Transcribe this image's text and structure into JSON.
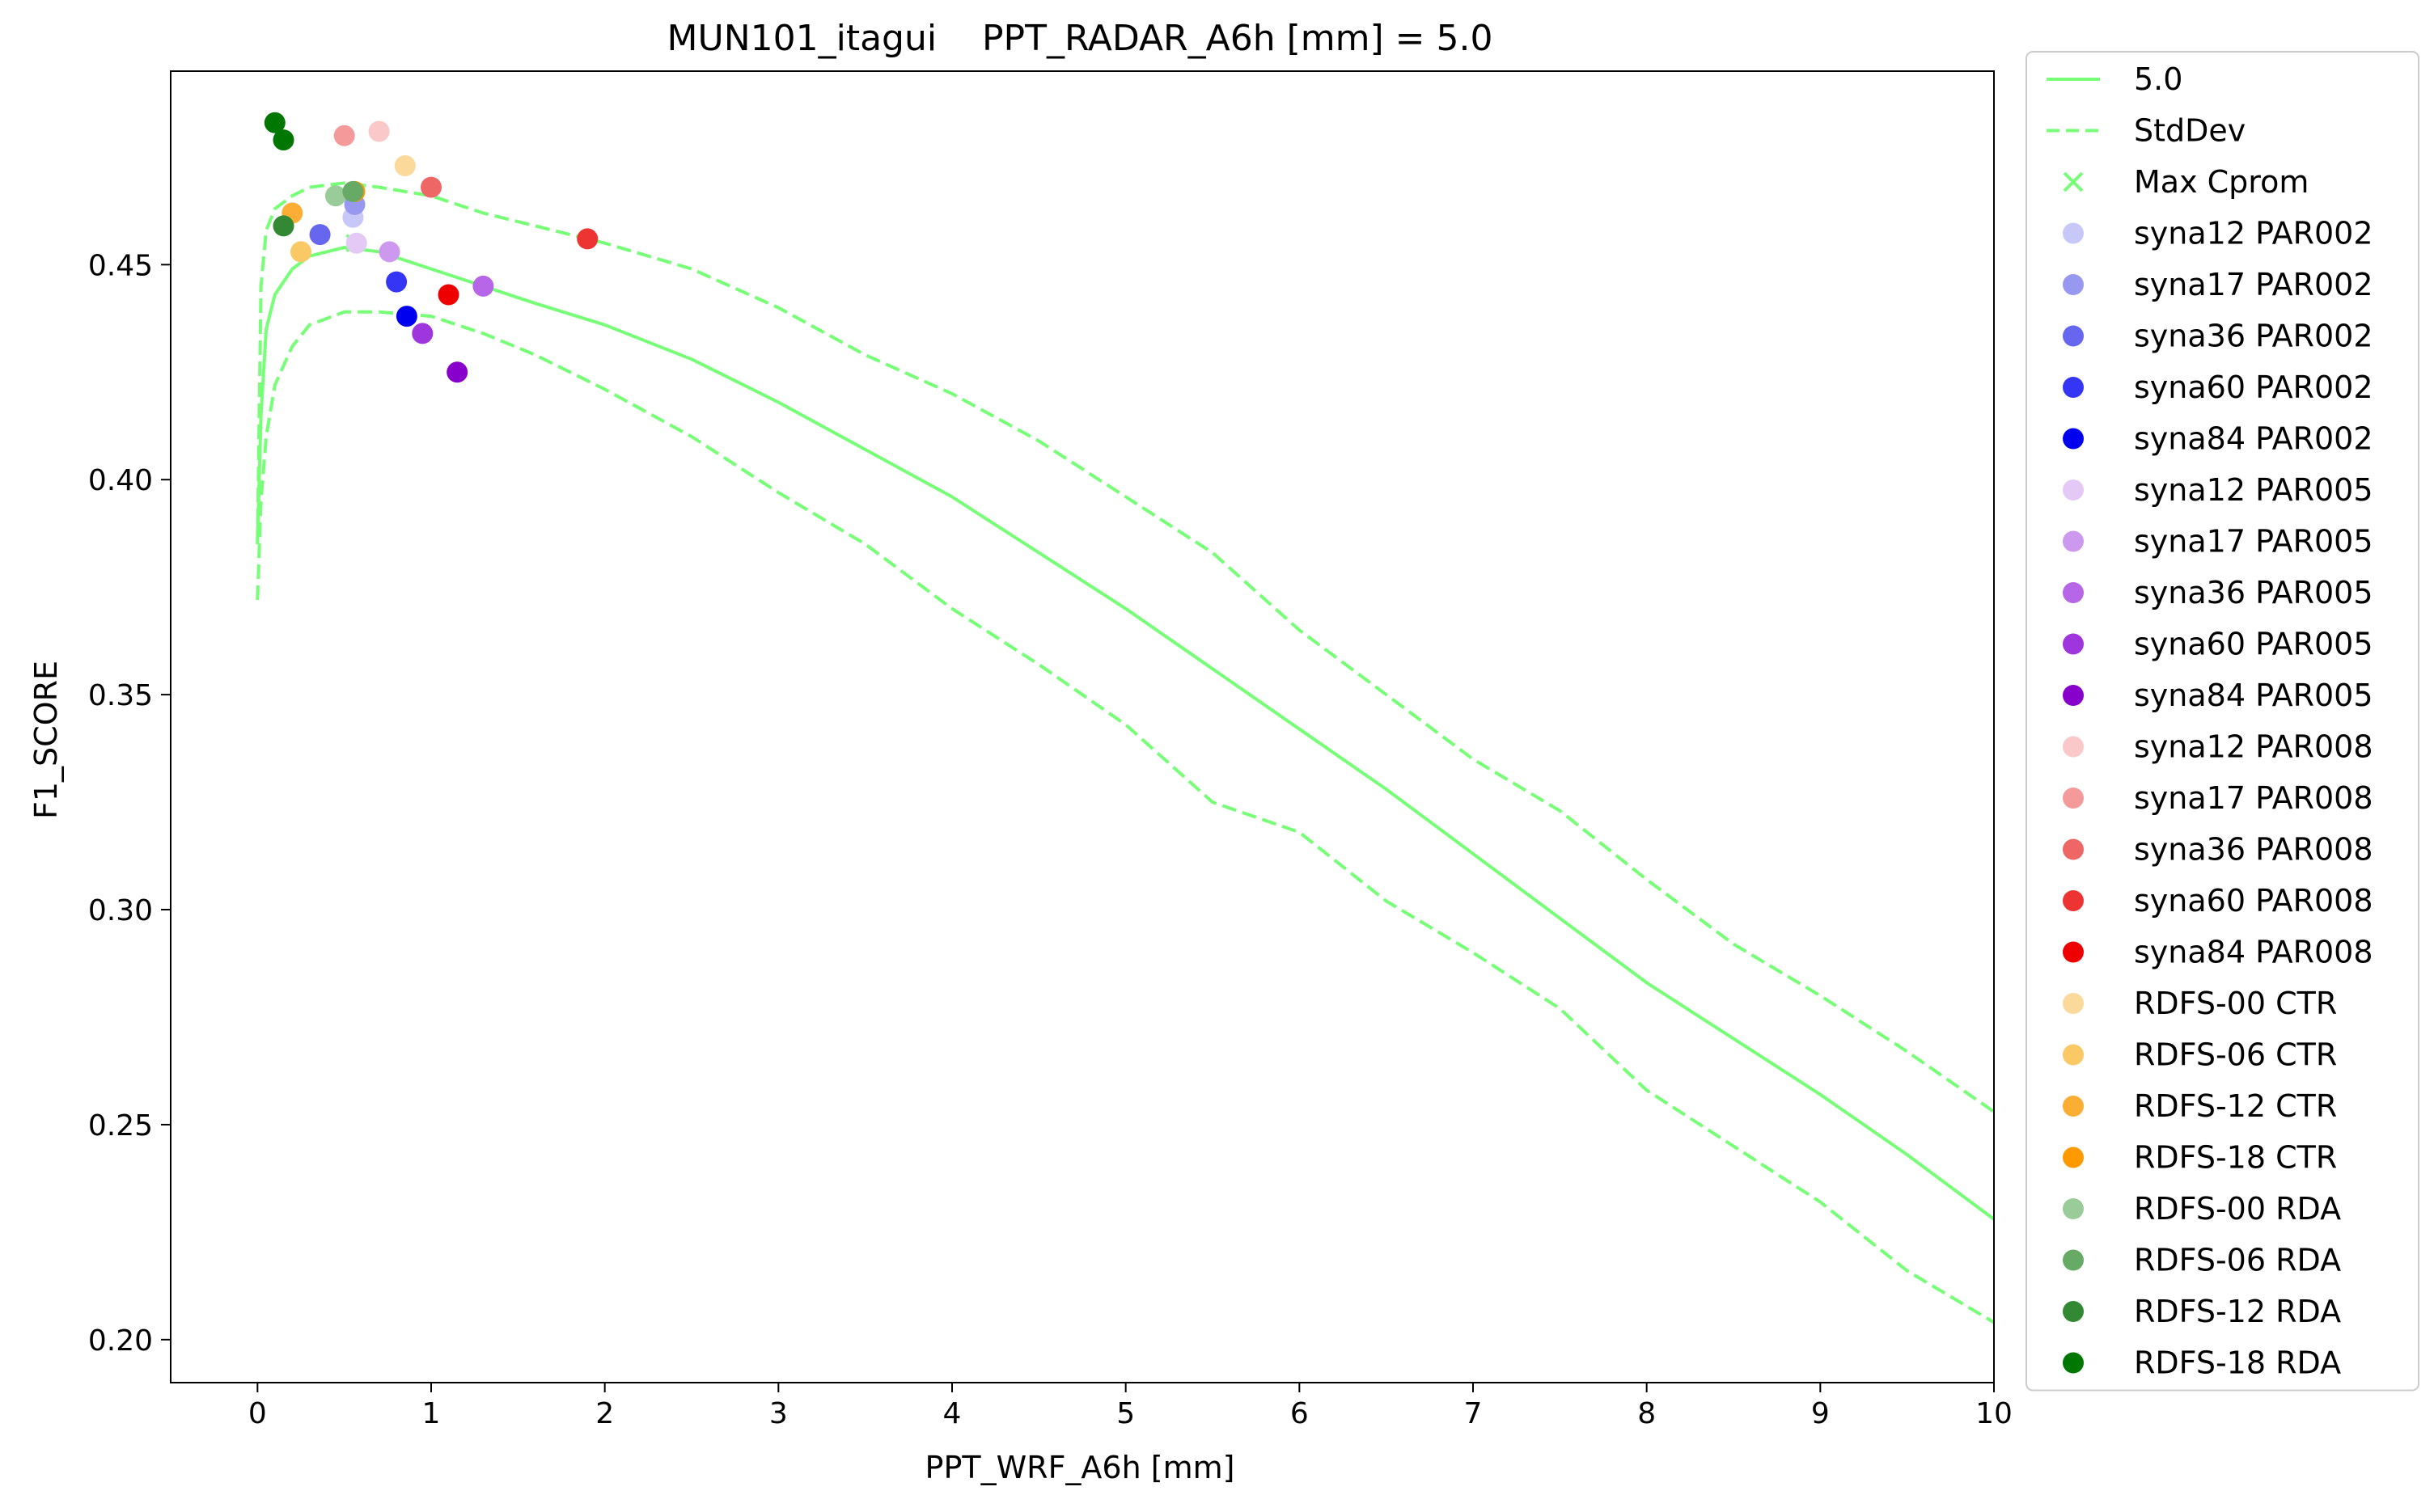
{
  "chart_data": {
    "type": "line",
    "title": "MUN101_itagui    PPT_RADAR_A6h [mm] = 5.0",
    "xlabel": "PPT_WRF_A6h [mm]",
    "ylabel": "F1_SCORE",
    "xlim": [
      -0.5,
      10
    ],
    "ylim": [
      0.19,
      0.495
    ],
    "xticks": [
      0,
      1,
      2,
      3,
      4,
      5,
      6,
      7,
      8,
      9,
      10
    ],
    "xtick_labels": [
      "0",
      "1",
      "2",
      "3",
      "4",
      "5",
      "6",
      "7",
      "8",
      "9",
      "10"
    ],
    "yticks": [
      0.2,
      0.25,
      0.3,
      0.35,
      0.4,
      0.45
    ],
    "ytick_labels": [
      "0.20",
      "0.25",
      "0.30",
      "0.35",
      "0.40",
      "0.45"
    ],
    "grid": false,
    "legend_position": "outside-right",
    "series": [
      {
        "name": "5.0",
        "style": "solid",
        "color": "#77ff77",
        "x": [
          0.0,
          0.02,
          0.05,
          0.1,
          0.2,
          0.3,
          0.5,
          0.7,
          1.0,
          1.3,
          1.6,
          2.0,
          2.5,
          3.0,
          3.5,
          4.0,
          4.5,
          5.0,
          5.5,
          6.0,
          6.5,
          7.0,
          7.5,
          8.0,
          8.5,
          9.0,
          9.5,
          10.0
        ],
        "y": [
          0.385,
          0.415,
          0.435,
          0.443,
          0.449,
          0.452,
          0.454,
          0.453,
          0.449,
          0.445,
          0.441,
          0.436,
          0.428,
          0.418,
          0.407,
          0.396,
          0.383,
          0.37,
          0.356,
          0.342,
          0.328,
          0.313,
          0.298,
          0.283,
          0.27,
          0.257,
          0.243,
          0.228
        ]
      },
      {
        "name": "StdDev",
        "style": "dashed",
        "color": "#77ff77",
        "x": [
          0.0,
          0.02,
          0.05,
          0.1,
          0.2,
          0.3,
          0.5,
          0.7,
          1.0,
          1.3,
          1.6,
          2.0,
          2.5,
          3.0,
          3.5,
          4.0,
          4.5,
          5.0,
          5.5,
          6.0,
          6.5,
          7.0,
          7.5,
          8.0,
          8.5,
          9.0,
          9.5,
          10.0
        ],
        "y": [
          0.385,
          0.445,
          0.458,
          0.463,
          0.466,
          0.468,
          0.469,
          0.468,
          0.466,
          0.462,
          0.459,
          0.455,
          0.449,
          0.44,
          0.429,
          0.42,
          0.409,
          0.396,
          0.383,
          0.365,
          0.35,
          0.335,
          0.323,
          0.307,
          0.292,
          0.28,
          0.267,
          0.253
        ]
      },
      {
        "name": "",
        "style": "dashed",
        "color": "#77ff77",
        "x": [
          0.0,
          0.02,
          0.05,
          0.1,
          0.2,
          0.3,
          0.5,
          0.7,
          1.0,
          1.3,
          1.6,
          2.0,
          2.5,
          3.0,
          3.5,
          4.0,
          4.5,
          5.0,
          5.5,
          6.0,
          6.5,
          7.0,
          7.5,
          8.0,
          8.5,
          9.0,
          9.5,
          10.0
        ],
        "y": [
          0.372,
          0.395,
          0.41,
          0.422,
          0.431,
          0.436,
          0.439,
          0.439,
          0.438,
          0.434,
          0.429,
          0.421,
          0.41,
          0.397,
          0.385,
          0.37,
          0.357,
          0.343,
          0.325,
          0.318,
          0.302,
          0.29,
          0.277,
          0.258,
          0.245,
          0.232,
          0.216,
          0.204
        ]
      }
    ],
    "max_cprom": {
      "name": "Max Cprom",
      "x": 0.56,
      "y": 0.455,
      "color": "#77ff77"
    },
    "points": [
      {
        "name": "syna12 PAR002",
        "x": 0.55,
        "y": 0.461,
        "color": "#c8c8f8"
      },
      {
        "name": "syna17 PAR002",
        "x": 0.56,
        "y": 0.464,
        "color": "#9898f0"
      },
      {
        "name": "syna36 PAR002",
        "x": 0.36,
        "y": 0.457,
        "color": "#6666ee"
      },
      {
        "name": "syna60 PAR002",
        "x": 0.8,
        "y": 0.446,
        "color": "#3535f5"
      },
      {
        "name": "syna84 PAR002",
        "x": 0.86,
        "y": 0.438,
        "color": "#0000ee"
      },
      {
        "name": "syna12 PAR005",
        "x": 0.57,
        "y": 0.455,
        "color": "#e4c8f5"
      },
      {
        "name": "syna17 PAR005",
        "x": 0.76,
        "y": 0.453,
        "color": "#cc99ee"
      },
      {
        "name": "syna36 PAR005",
        "x": 1.3,
        "y": 0.445,
        "color": "#b666e6"
      },
      {
        "name": "syna60 PAR005",
        "x": 0.95,
        "y": 0.434,
        "color": "#9e35dd"
      },
      {
        "name": "syna84 PAR005",
        "x": 1.15,
        "y": 0.425,
        "color": "#8800cc"
      },
      {
        "name": "syna12 PAR008",
        "x": 0.7,
        "y": 0.481,
        "color": "#fac8c8"
      },
      {
        "name": "syna17 PAR008",
        "x": 0.5,
        "y": 0.48,
        "color": "#f59a9a"
      },
      {
        "name": "syna36 PAR008",
        "x": 1.0,
        "y": 0.468,
        "color": "#ee6666"
      },
      {
        "name": "syna60 PAR008",
        "x": 1.9,
        "y": 0.456,
        "color": "#ee3333"
      },
      {
        "name": "syna84 PAR008",
        "x": 1.1,
        "y": 0.443,
        "color": "#ee0000"
      },
      {
        "name": "RDFS-00 CTR",
        "x": 0.85,
        "y": 0.473,
        "color": "#fbd99a"
      },
      {
        "name": "RDFS-06 CTR",
        "x": 0.25,
        "y": 0.453,
        "color": "#fbc866"
      },
      {
        "name": "RDFS-12 CTR",
        "x": 0.2,
        "y": 0.462,
        "color": "#fbae33"
      },
      {
        "name": "RDFS-18 CTR",
        "x": 0.56,
        "y": 0.467,
        "color": "#ff9900"
      },
      {
        "name": "RDFS-00 RDA",
        "x": 0.45,
        "y": 0.466,
        "color": "#99cc99"
      },
      {
        "name": "RDFS-06 RDA",
        "x": 0.55,
        "y": 0.467,
        "color": "#66aa66"
      },
      {
        "name": "RDFS-12 RDA",
        "x": 0.15,
        "y": 0.459,
        "color": "#338833"
      },
      {
        "name": "RDFS-18 RDA",
        "x": 0.1,
        "y": 0.483,
        "color": "#007700"
      },
      {
        "name": "",
        "x": 0.15,
        "y": 0.479,
        "color": "#007700"
      }
    ]
  }
}
